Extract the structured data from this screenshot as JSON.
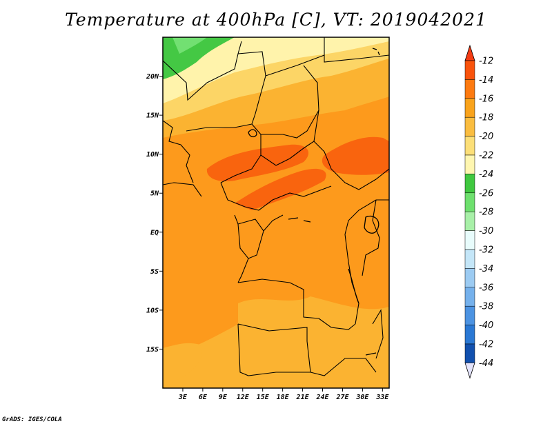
{
  "title": "Temperature at 400hPa [C], VT: 2019042021",
  "credit": "GrADS: IGES/COLA",
  "map": {
    "lon_range": [
      0,
      34
    ],
    "lat_range": [
      -20,
      25
    ],
    "lat_ticks": [
      {
        "lat": 20,
        "label": "20N"
      },
      {
        "lat": 15,
        "label": "15N"
      },
      {
        "lat": 10,
        "label": "10N"
      },
      {
        "lat": 5,
        "label": "5N"
      },
      {
        "lat": 0,
        "label": "EQ"
      },
      {
        "lat": -5,
        "label": "5S"
      },
      {
        "lat": -10,
        "label": "10S"
      },
      {
        "lat": -15,
        "label": "15S"
      }
    ],
    "lon_ticks": [
      {
        "lon": 3,
        "label": "3E"
      },
      {
        "lon": 6,
        "label": "6E"
      },
      {
        "lon": 9,
        "label": "9E"
      },
      {
        "lon": 12,
        "label": "12E"
      },
      {
        "lon": 15,
        "label": "15E"
      },
      {
        "lon": 18,
        "label": "18E"
      },
      {
        "lon": 21,
        "label": "21E"
      },
      {
        "lon": 24,
        "label": "24E"
      },
      {
        "lon": 27,
        "label": "27E"
      },
      {
        "lon": 30,
        "label": "30E"
      },
      {
        "lon": 33,
        "label": "33E"
      }
    ]
  },
  "colorbar": {
    "labels": [
      "-12",
      "-14",
      "-16",
      "-18",
      "-20",
      "-22",
      "-24",
      "-26",
      "-28",
      "-30",
      "-32",
      "-34",
      "-36",
      "-38",
      "-40",
      "-42",
      "-44"
    ],
    "colors": [
      "#f9530c",
      "#fd7a10",
      "#f9a31c",
      "#fabd40",
      "#fcdf78",
      "#fff6b0",
      "#40c840",
      "#6ee06e",
      "#a8f0a8",
      "#e8fcfc",
      "#c4e6f8",
      "#9ccbf2",
      "#75b1ec",
      "#4c93e2",
      "#2a78d4",
      "#1150ae",
      "#0e1b73"
    ],
    "top_color": "#f43c14",
    "bottom_color": "#e4e4fc"
  }
}
